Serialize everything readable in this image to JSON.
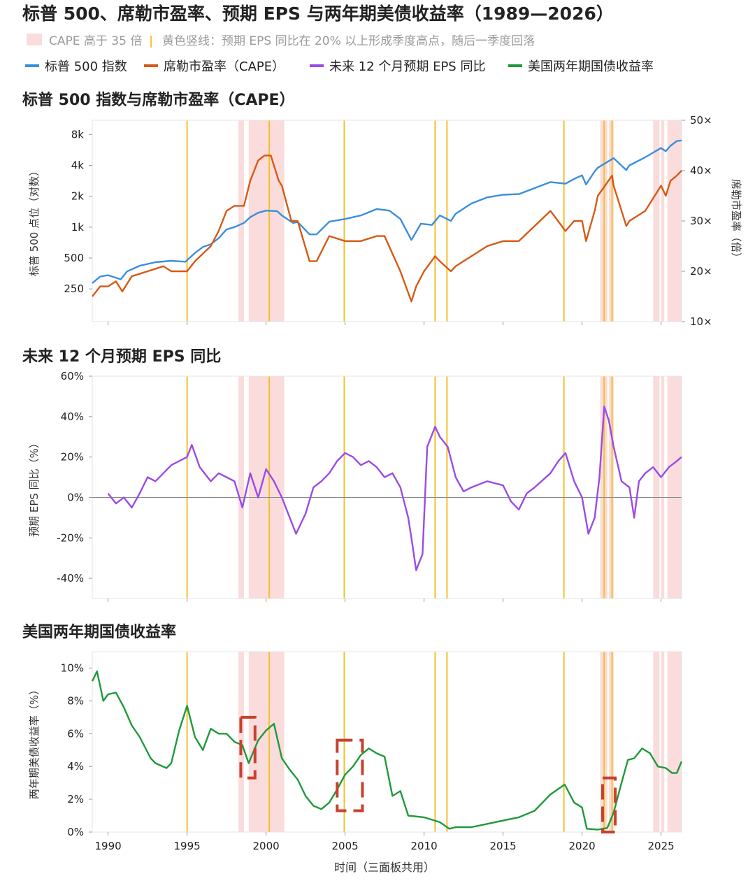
{
  "title": "标普 500、席勒市盈率、预期 EPS 与两年期美债收益率（1989—2026）",
  "subtitle": {
    "shade_label": "CAPE 高于 35 倍",
    "separator": "|",
    "vline_label": "黄色竖线：预期 EPS 同比在 20% 以上形成季度高点，随后一季度回落"
  },
  "legend": [
    {
      "name": "标普 500 指数",
      "color": "#3b8fdc"
    },
    {
      "name": "席勒市盈率（CAPE）",
      "color": "#d65a16"
    },
    {
      "name": "未来 12 个月预期 EPS 同比",
      "color": "#9b4be6"
    },
    {
      "name": "美国两年期国债收益率",
      "color": "#1e9a3a"
    }
  ],
  "colors": {
    "shade": "#fadcdc",
    "vline": "#f2c12e",
    "zero_line": "#8a8a8a",
    "box": "#c8412e",
    "frame": "#e6e6e6"
  },
  "xaxis": {
    "label": "时间（三面板共用）",
    "ticks": [
      "1990",
      "1995",
      "2000",
      "2005",
      "2010",
      "2015",
      "2020",
      "2025"
    ],
    "range": [
      1989.0,
      2026.3
    ]
  },
  "shaded_periods": [
    [
      1998.25,
      1998.6
    ],
    [
      1998.9,
      2001.15
    ],
    [
      2021.15,
      2021.6
    ],
    [
      2021.7,
      2022.0
    ],
    [
      2024.5,
      2024.9
    ],
    [
      2025.0,
      2025.2
    ],
    [
      2025.4,
      2026.3
    ]
  ],
  "vertical_lines": [
    1995.0,
    2000.2,
    2004.95,
    2010.7,
    2011.45,
    2018.85,
    2021.4,
    2021.9
  ],
  "chart_data": [
    {
      "type": "line",
      "title": "标普 500 指数与席勒市盈率（CAPE）",
      "ylabel": "标普 500 点位（对数）",
      "ylabel_right": "席勒市盈率（倍）",
      "yscale": "log",
      "ylim": [
        120,
        11000
      ],
      "yticks": [
        {
          "value": 250,
          "label": "250"
        },
        {
          "value": 500,
          "label": "500"
        },
        {
          "value": 1000,
          "label": "1k"
        },
        {
          "value": 2000,
          "label": "2k"
        },
        {
          "value": 4000,
          "label": "4k"
        },
        {
          "value": 8000,
          "label": "8k"
        }
      ],
      "ylim_right": [
        10,
        50
      ],
      "yticks_right": [
        {
          "value": 10,
          "label": "10×"
        },
        {
          "value": 20,
          "label": "20×"
        },
        {
          "value": 30,
          "label": "30×"
        },
        {
          "value": 40,
          "label": "40×"
        },
        {
          "value": 50,
          "label": "50×"
        }
      ],
      "series": [
        {
          "name": "标普 500 指数",
          "axis": "left",
          "x": [
            1989.0,
            1989.5,
            1990.0,
            1990.8,
            1991.2,
            1992.0,
            1993.0,
            1994.0,
            1994.9,
            1995.5,
            1996.0,
            1996.5,
            1997.0,
            1997.5,
            1998.0,
            1998.6,
            1999.0,
            1999.5,
            2000.0,
            2000.7,
            2001.0,
            2001.7,
            2002.0,
            2002.75,
            2003.2,
            2004.0,
            2005.0,
            2006.0,
            2007.0,
            2007.8,
            2008.5,
            2009.2,
            2009.8,
            2010.5,
            2011.0,
            2011.7,
            2012.0,
            2013.0,
            2014.0,
            2015.0,
            2016.0,
            2017.0,
            2018.0,
            2018.95,
            2019.5,
            2020.0,
            2020.25,
            2020.8,
            2021.0,
            2022.0,
            2022.8,
            2023.0,
            2024.0,
            2025.0,
            2025.3,
            2025.6,
            2026.0,
            2026.3
          ],
          "y": [
            285,
            330,
            340,
            310,
            370,
            420,
            455,
            470,
            460,
            560,
            640,
            680,
            780,
            950,
            1000,
            1100,
            1250,
            1380,
            1450,
            1430,
            1300,
            1100,
            1120,
            850,
            850,
            1130,
            1200,
            1300,
            1500,
            1450,
            1200,
            750,
            1080,
            1050,
            1300,
            1150,
            1350,
            1700,
            1950,
            2070,
            2100,
            2400,
            2750,
            2650,
            2950,
            3200,
            2600,
            3500,
            3800,
            4700,
            3600,
            4000,
            4800,
            5900,
            5500,
            6200,
            6900,
            7000
          ]
        },
        {
          "name": "席勒市盈率（CAPE）",
          "axis": "right",
          "x": [
            1989.0,
            1989.5,
            1990.0,
            1990.5,
            1990.9,
            1991.5,
            1992.5,
            1993.5,
            1994.0,
            1995.0,
            1995.5,
            1996.5,
            1997.0,
            1997.5,
            1998.0,
            1998.6,
            1999.0,
            1999.5,
            1999.9,
            2000.3,
            2000.8,
            2001.0,
            2001.6,
            2002.0,
            2002.75,
            2003.2,
            2004.0,
            2005.0,
            2006.0,
            2007.0,
            2007.5,
            2008.5,
            2009.2,
            2009.5,
            2010.0,
            2010.7,
            2011.0,
            2011.7,
            2012.0,
            2013.0,
            2014.0,
            2015.0,
            2016.0,
            2017.0,
            2018.0,
            2018.95,
            2019.5,
            2020.0,
            2020.25,
            2020.8,
            2021.0,
            2021.9,
            2022.0,
            2022.8,
            2023.0,
            2024.0,
            2025.0,
            2025.3,
            2025.6,
            2026.0,
            2026.3
          ],
          "y": [
            15,
            17,
            17,
            18,
            16,
            19,
            20,
            21,
            20,
            20,
            22,
            25,
            28,
            32,
            33,
            33,
            38,
            42,
            43,
            43,
            38,
            37,
            30,
            30,
            22,
            22,
            27,
            26,
            26,
            27,
            27,
            20,
            14,
            17,
            20,
            23,
            22,
            20,
            21,
            23,
            25,
            26,
            26,
            29,
            32,
            28,
            30,
            30,
            26,
            32,
            35,
            39,
            37,
            29,
            30,
            32,
            37,
            35,
            38,
            39,
            40
          ]
        }
      ]
    },
    {
      "type": "line",
      "title": "未来 12 个月预期 EPS 同比",
      "ylabel": "预期 EPS 同比（%）",
      "ylim": [
        -50,
        60
      ],
      "yticks": [
        {
          "value": -40,
          "label": "-40%"
        },
        {
          "value": -20,
          "label": "-20%"
        },
        {
          "value": 0,
          "label": "0%"
        },
        {
          "value": 20,
          "label": "20%"
        },
        {
          "value": 40,
          "label": "40%"
        },
        {
          "value": 60,
          "label": "60%"
        }
      ],
      "series": [
        {
          "name": "未来 12 个月预期 EPS 同比",
          "x": [
            1990.0,
            1990.5,
            1991.0,
            1991.5,
            1992.0,
            1992.5,
            1993.0,
            1993.5,
            1994.0,
            1994.5,
            1995.0,
            1995.3,
            1995.8,
            1996.5,
            1997.0,
            1997.5,
            1998.0,
            1998.5,
            1999.0,
            1999.5,
            2000.0,
            2000.5,
            2001.0,
            2001.5,
            2001.9,
            2002.5,
            2003.0,
            2003.5,
            2004.0,
            2004.5,
            2005.0,
            2005.5,
            2006.0,
            2006.5,
            2007.0,
            2007.5,
            2008.0,
            2008.5,
            2009.0,
            2009.2,
            2009.5,
            2009.9,
            2010.2,
            2010.7,
            2011.0,
            2011.5,
            2012.0,
            2012.5,
            2013.0,
            2014.0,
            2015.0,
            2015.5,
            2016.0,
            2016.5,
            2017.0,
            2018.0,
            2018.5,
            2018.95,
            2019.5,
            2020.0,
            2020.4,
            2020.8,
            2021.1,
            2021.4,
            2021.7,
            2022.0,
            2022.5,
            2023.0,
            2023.3,
            2023.6,
            2024.0,
            2024.5,
            2025.0,
            2025.5,
            2026.0,
            2026.3
          ],
          "y": [
            2,
            -3,
            0,
            -5,
            2,
            10,
            8,
            12,
            16,
            18,
            20,
            26,
            15,
            8,
            12,
            10,
            8,
            -5,
            12,
            0,
            14,
            8,
            0,
            -10,
            -18,
            -8,
            5,
            8,
            12,
            18,
            22,
            20,
            16,
            18,
            15,
            10,
            12,
            5,
            -10,
            -20,
            -36,
            -28,
            25,
            35,
            30,
            25,
            10,
            3,
            5,
            8,
            6,
            -2,
            -6,
            2,
            5,
            12,
            18,
            22,
            8,
            0,
            -18,
            -10,
            10,
            45,
            38,
            25,
            8,
            5,
            -10,
            8,
            12,
            15,
            10,
            15,
            18,
            20
          ]
        }
      ]
    },
    {
      "type": "line",
      "title": "美国两年期国债收益率",
      "ylabel": "两年期美债收益率（%）",
      "ylim": [
        0,
        11
      ],
      "yticks": [
        {
          "value": 0,
          "label": "0%"
        },
        {
          "value": 2,
          "label": "2%"
        },
        {
          "value": 4,
          "label": "4%"
        },
        {
          "value": 6,
          "label": "6%"
        },
        {
          "value": 8,
          "label": "8%"
        },
        {
          "value": 10,
          "label": "10%"
        }
      ],
      "series": [
        {
          "name": "美国两年期国债收益率",
          "x": [
            1989.0,
            1989.3,
            1989.7,
            1990.0,
            1990.5,
            1991.0,
            1991.5,
            1992.0,
            1992.7,
            1993.0,
            1993.7,
            1994.0,
            1994.5,
            1995.0,
            1995.5,
            1996.0,
            1996.5,
            1997.0,
            1997.5,
            1998.0,
            1998.5,
            1998.9,
            1999.5,
            2000.0,
            2000.5,
            2001.0,
            2001.5,
            2002.0,
            2002.5,
            2003.0,
            2003.5,
            2004.0,
            2004.5,
            2005.0,
            2005.5,
            2006.0,
            2006.5,
            2007.0,
            2007.5,
            2008.0,
            2008.5,
            2009.0,
            2010.0,
            2011.0,
            2011.6,
            2012.0,
            2013.0,
            2014.0,
            2015.0,
            2016.0,
            2017.0,
            2018.0,
            2018.9,
            2019.5,
            2020.0,
            2020.3,
            2021.0,
            2021.6,
            2022.0,
            2022.5,
            2022.9,
            2023.3,
            2023.8,
            2024.3,
            2024.8,
            2025.3,
            2025.7,
            2026.0,
            2026.3
          ],
          "y": [
            9.2,
            9.8,
            8.0,
            8.4,
            8.5,
            7.6,
            6.5,
            5.8,
            4.5,
            4.2,
            3.9,
            4.2,
            6.2,
            7.7,
            5.8,
            5.0,
            6.3,
            6.0,
            6.0,
            5.5,
            5.3,
            4.2,
            5.6,
            6.2,
            6.6,
            4.5,
            3.8,
            3.2,
            2.2,
            1.6,
            1.4,
            1.8,
            2.6,
            3.5,
            4.0,
            4.7,
            5.1,
            4.8,
            4.6,
            2.2,
            2.5,
            1.0,
            0.9,
            0.6,
            0.2,
            0.3,
            0.3,
            0.5,
            0.7,
            0.9,
            1.3,
            2.3,
            2.9,
            1.8,
            1.5,
            0.2,
            0.15,
            0.25,
            1.2,
            3.0,
            4.4,
            4.5,
            5.1,
            4.8,
            4.0,
            3.9,
            3.6,
            3.6,
            4.3
          ]
        }
      ]
    }
  ],
  "annotation_boxes": [
    {
      "name": "box-1999",
      "x0": 1998.4,
      "x1": 1999.3,
      "y0": 3.3,
      "y1": 7.0
    },
    {
      "name": "box-2005",
      "x0": 2004.5,
      "x1": 2006.1,
      "y0": 1.3,
      "y1": 5.6
    },
    {
      "name": "box-2021",
      "x0": 2021.3,
      "x1": 2022.1,
      "y0": 0.0,
      "y1": 3.3
    }
  ]
}
